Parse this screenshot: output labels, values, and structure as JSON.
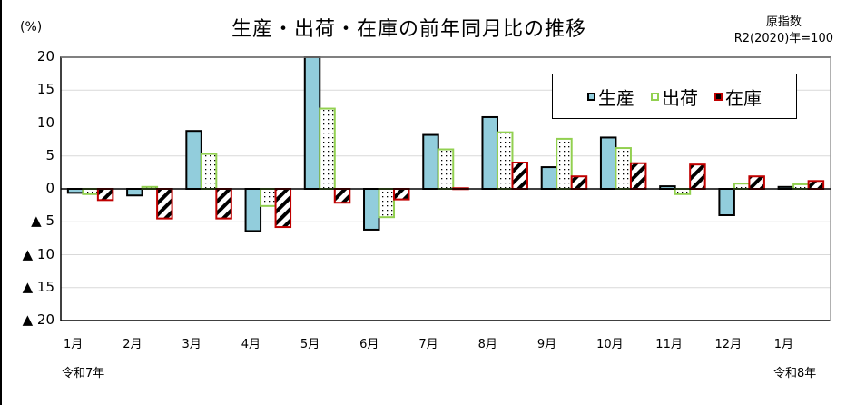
{
  "chart_data": {
    "type": "bar",
    "title": "生産・出荷・在庫の前年同月比の推移",
    "ylabel": "(%)",
    "xlabel": "",
    "note": [
      "原指数",
      "R2(2020)年=100"
    ],
    "ylim": [
      -20,
      20
    ],
    "yticks": [
      20,
      15,
      10,
      5,
      0,
      -5,
      -10,
      -15,
      -20
    ],
    "ytick_labels": [
      "20",
      "15",
      "10",
      "5",
      "0",
      "▲ 5",
      "▲ 10",
      "▲ 15",
      "▲ 20"
    ],
    "grid": true,
    "legend_position": "upper right",
    "categories": [
      "1月",
      "2月",
      "3月",
      "4月",
      "5月",
      "6月",
      "7月",
      "8月",
      "9月",
      "10月",
      "11月",
      "12月",
      "1月"
    ],
    "era_labels": [
      {
        "category_index": 0,
        "label": "令和7年"
      },
      {
        "category_index": 12,
        "label": "令和8年"
      }
    ],
    "series": [
      {
        "name": "生産",
        "color": "#92CDDC",
        "border": "#000000",
        "pattern": "solid",
        "values": [
          -0.6,
          -1.0,
          8.8,
          -6.4,
          20.0,
          -6.2,
          8.2,
          10.9,
          3.3,
          7.8,
          0.4,
          -4.0,
          0.3
        ]
      },
      {
        "name": "出荷",
        "color": "#FFFFFF",
        "border": "#92D050",
        "pattern": "dots",
        "values": [
          -0.8,
          0.3,
          5.3,
          -2.6,
          12.2,
          -4.3,
          6.0,
          8.6,
          7.6,
          6.2,
          -0.8,
          0.8,
          0.7
        ]
      },
      {
        "name": "在庫",
        "color": "#FFFFFF",
        "border": "#C00000",
        "pattern": "diagonal-stripes",
        "values": [
          -1.7,
          -4.5,
          -4.5,
          -5.8,
          -2.1,
          -1.6,
          0.1,
          4.0,
          1.9,
          3.9,
          3.7,
          1.9,
          1.2
        ]
      }
    ]
  },
  "header": {
    "title": "生産・出荷・在庫の前年同月比の推移",
    "unit": "(%)",
    "note_line1": "原指数",
    "note_line2": "R2(2020)年=100"
  },
  "legend": {
    "items": [
      {
        "label": "生産",
        "fill": "#92CDDC",
        "border": "#000000"
      },
      {
        "label": "出荷",
        "fill": "#FFFFFF",
        "border": "#92D050"
      },
      {
        "label": "在庫",
        "fill": "#FFFFFF",
        "border": "#C00000"
      }
    ]
  },
  "era": {
    "start": "令和7年",
    "end": "令和8年"
  }
}
